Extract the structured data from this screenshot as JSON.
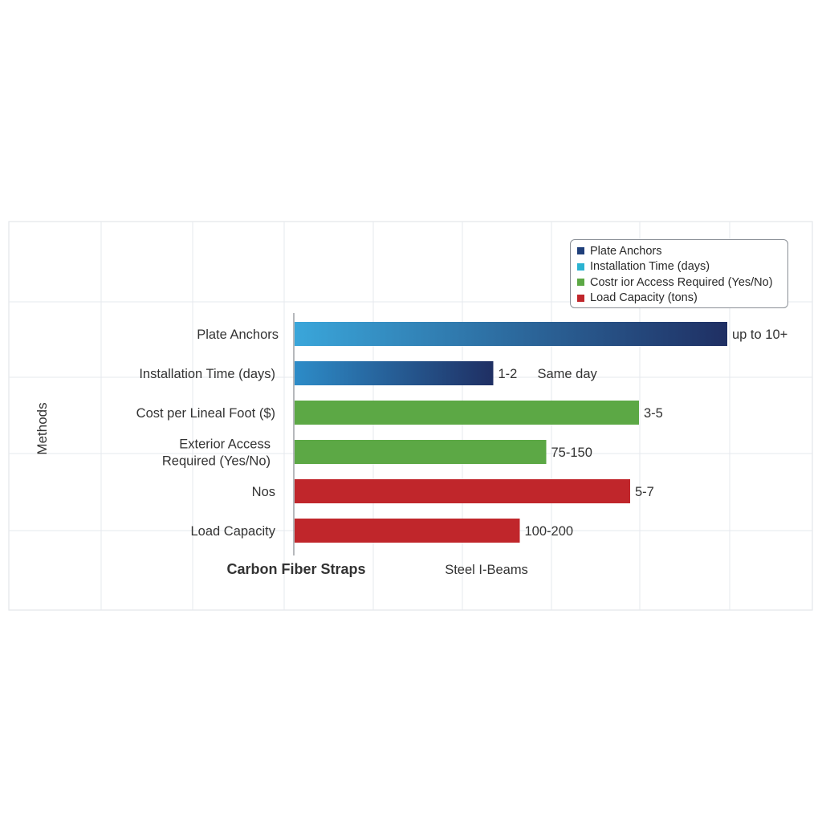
{
  "chart_data": {
    "type": "bar",
    "orientation": "horizontal",
    "ylabel": "Methods",
    "grid": true,
    "legend_position": "top-right",
    "categories": [
      [
        "Plate Anchors"
      ],
      [
        "Installation Time (days)"
      ],
      [
        "Cost per Lineal Foot ($)"
      ],
      [
        "Exterior Access",
        "Required (Yes/No)"
      ],
      [
        "Nos"
      ],
      [
        "Load Capacity"
      ]
    ],
    "bars": [
      {
        "value": 0.98,
        "color_start": "#3aa6da",
        "color_end": "#1f2f63",
        "label": "up to 10+",
        "extra_label": ""
      },
      {
        "value": 0.45,
        "color_start": "#2d8cc8",
        "color_end": "#1f2f63",
        "label": "1-2",
        "extra_label": "Same day"
      },
      {
        "value": 0.78,
        "color_start": "#5ca845",
        "color_end": "#5ca845",
        "label": "3-5",
        "extra_label": ""
      },
      {
        "value": 0.57,
        "color_start": "#5ca845",
        "color_end": "#5ca845",
        "label": "75-150",
        "extra_label": ""
      },
      {
        "value": 0.76,
        "color_start": "#c0262b",
        "color_end": "#c0262b",
        "label": "5-7",
        "extra_label": ""
      },
      {
        "value": 0.51,
        "color_start": "#c0262b",
        "color_end": "#c0262b",
        "label": "100-200",
        "extra_label": ""
      }
    ],
    "bottom_labels": [
      "Carbon Fiber Straps",
      "Steel I-Beams"
    ],
    "legend": [
      {
        "label": "Plate Anchors",
        "color": "#1f3f7a"
      },
      {
        "label": "Installation Time (days)",
        "color": "#2bb3d1"
      },
      {
        "label": "Costr ior Access Required (Yes/No)",
        "color": "#5ca845"
      },
      {
        "label": "Load Capacity (tons)",
        "color": "#c0262b"
      }
    ]
  }
}
